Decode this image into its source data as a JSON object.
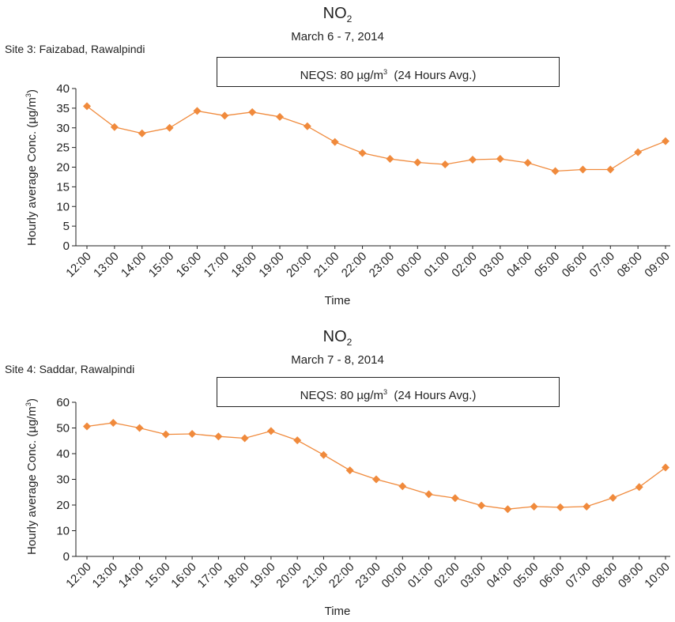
{
  "chart_data": [
    {
      "type": "line",
      "title_main": "NO",
      "title_sub": "2",
      "subtitle": "March 6 - 7, 2014",
      "site": "Site 3: Faizabad, Rawalpindi",
      "annotation": "NEQS: 80 µg/m",
      "annotation_sup": "3",
      "annotation_suffix": "  (24 Hours Avg.)",
      "xlabel": "Time",
      "ylabel": "Hourly average Conc. (µg/m",
      "ylabel_sup": "3",
      "ylabel_end": ")",
      "ylim": [
        0,
        40
      ],
      "yticks": [
        0,
        5,
        10,
        15,
        20,
        25,
        30,
        35,
        40
      ],
      "categories": [
        "12:00",
        "13:00",
        "14:00",
        "15:00",
        "16:00",
        "17:00",
        "18:00",
        "19:00",
        "20:00",
        "21:00",
        "22:00",
        "23:00",
        "00:00",
        "01:00",
        "02:00",
        "03:00",
        "04:00",
        "05:00",
        "06:00",
        "07:00",
        "08:00",
        "09:00"
      ],
      "values": [
        35.5,
        30.2,
        28.6,
        30.0,
        34.3,
        33.1,
        34.0,
        32.8,
        30.4,
        26.4,
        23.6,
        22.1,
        21.2,
        20.7,
        21.9,
        22.1,
        21.1,
        19.0,
        19.4,
        19.4,
        23.8,
        26.6
      ],
      "color": "#f08a3c"
    },
    {
      "type": "line",
      "title_main": "NO",
      "title_sub": "2",
      "subtitle": "March 7 - 8, 2014",
      "site": "Site 4: Saddar, Rawalpindi",
      "annotation": "NEQS: 80 µg/m",
      "annotation_sup": "3",
      "annotation_suffix": "  (24 Hours Avg.)",
      "xlabel": "Time",
      "ylabel": "Hourly average Conc. (µg/m",
      "ylabel_sup": "3",
      "ylabel_end": ")",
      "ylim": [
        0,
        60
      ],
      "yticks": [
        0,
        10,
        20,
        30,
        40,
        50,
        60
      ],
      "categories": [
        "12:00",
        "13:00",
        "14:00",
        "15:00",
        "16:00",
        "17:00",
        "18:00",
        "19:00",
        "20:00",
        "21:00",
        "22:00",
        "23:00",
        "00:00",
        "01:00",
        "02:00",
        "03:00",
        "04:00",
        "05:00",
        "06:00",
        "07:00",
        "08:00",
        "09:00",
        "10:00"
      ],
      "values": [
        50.6,
        52.0,
        50.0,
        47.5,
        47.7,
        46.7,
        46.0,
        48.8,
        45.2,
        39.5,
        33.5,
        30.0,
        27.3,
        24.2,
        22.7,
        19.8,
        18.4,
        19.4,
        19.1,
        19.4,
        22.8,
        27.0,
        34.6
      ],
      "color": "#f08a3c"
    }
  ]
}
